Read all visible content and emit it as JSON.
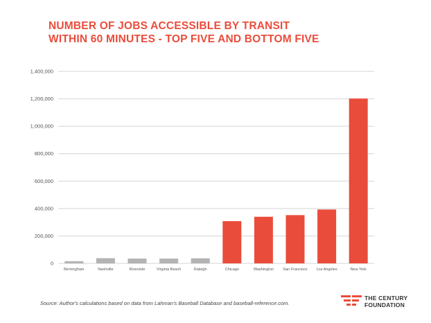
{
  "title": {
    "line1": "NUMBER OF JOBS ACCESSIBLE BY TRANSIT",
    "line2": "WITHIN 60 MINUTES - TOP FIVE AND BOTTOM FIVE"
  },
  "source": "Source:  Author's calculations based on data from Lahman's Baseball Database and baseball-reference.com.",
  "logo": {
    "line1": "THE CENTURY",
    "line2": "FOUNDATION"
  },
  "colors": {
    "title": "#ea4c3b",
    "bottom_five": "#b3b3b3",
    "top_five": "#ea4c3b",
    "grid": "#d4d4d4"
  },
  "chart_data": {
    "type": "bar",
    "title": "NUMBER OF JOBS ACCESSIBLE BY TRANSIT WITHIN 60 MINUTES - TOP FIVE AND BOTTOM FIVE",
    "xlabel": "",
    "ylabel": "",
    "ylim": [
      0,
      1400000
    ],
    "yticks": [
      0,
      200000,
      400000,
      600000,
      800000,
      1000000,
      1200000,
      1400000
    ],
    "ytick_labels": [
      "0",
      "200,000",
      "400,000",
      "600,000",
      "800,000",
      "1,000,000",
      "1,200,000",
      "1,400,000"
    ],
    "grid": true,
    "categories": [
      "Birmingham",
      "Nashville",
      "Riverside",
      "Virginia Beach",
      "Raleigh",
      "Chicago",
      "Washington",
      "San Francisco",
      "Los Angeles",
      "New York"
    ],
    "values": [
      16000,
      38000,
      35000,
      35000,
      37000,
      308000,
      340000,
      352000,
      393000,
      1202000
    ],
    "groups": [
      "bottom",
      "bottom",
      "bottom",
      "bottom",
      "bottom",
      "top",
      "top",
      "top",
      "top",
      "top"
    ]
  }
}
